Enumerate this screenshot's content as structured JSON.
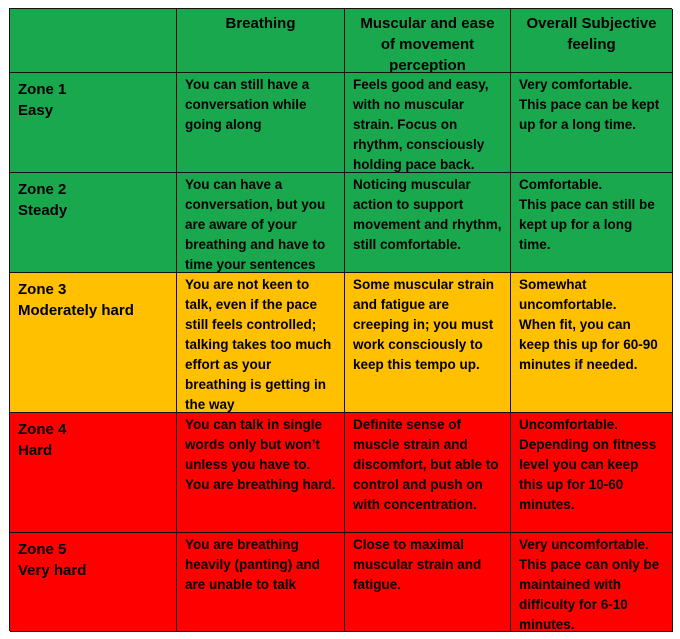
{
  "colors": {
    "green": "#1aa84f",
    "yellow": "#ffc000",
    "red": "#ff0000"
  },
  "header": {
    "blank": "",
    "breathing": "Breathing",
    "muscular": "Muscular and ease of movement perception",
    "subjective": "Overall Subjective feeling"
  },
  "rows": [
    {
      "zone": "Zone 1\nEasy",
      "color": "green",
      "breathing": "You can still have a conversation while going along",
      "muscular": "Feels good and easy, with no muscular strain. Focus on rhythm, consciously holding pace back.",
      "subjective": "Very comfortable.\nThis pace can be kept up for a long time."
    },
    {
      "zone": "Zone 2\nSteady",
      "color": "green",
      "breathing": "You can have a conversation, but you are aware of your breathing and have to time your sentences",
      "muscular": "Noticing muscular action to support movement and rhythm, still comfortable.",
      "subjective": "Comfortable.\nThis pace can still be kept up for a long time."
    },
    {
      "zone": "Zone 3\nModerately hard",
      "color": "yellow",
      "breathing": "You are not keen to talk, even if the pace still feels controlled; talking takes too much effort as your breathing is getting in the way",
      "muscular": "Some muscular strain and fatigue are creeping in; you must work consciously to keep this tempo up.",
      "subjective": "Somewhat uncomfortable.\nWhen fit, you can keep this up for 60-90 minutes if needed."
    },
    {
      "zone": "Zone 4\nHard",
      "color": "red",
      "breathing": "You can talk in single words only but won’t unless you have to.\nYou are breathing hard.",
      "muscular": "Definite sense of muscle strain and discomfort, but able to control and push on with concentration.",
      "subjective": "Uncomfortable.\nDepending on fitness level you can keep this up for 10-60 minutes."
    },
    {
      "zone": "Zone 5\nVery hard",
      "color": "red",
      "breathing": "You are breathing heavily (panting) and are unable to talk",
      "muscular": "Close to maximal muscular strain and fatigue.",
      "subjective": "Very uncomfortable.\nThis pace can only be maintained with difficulty for 6-10 minutes."
    }
  ]
}
